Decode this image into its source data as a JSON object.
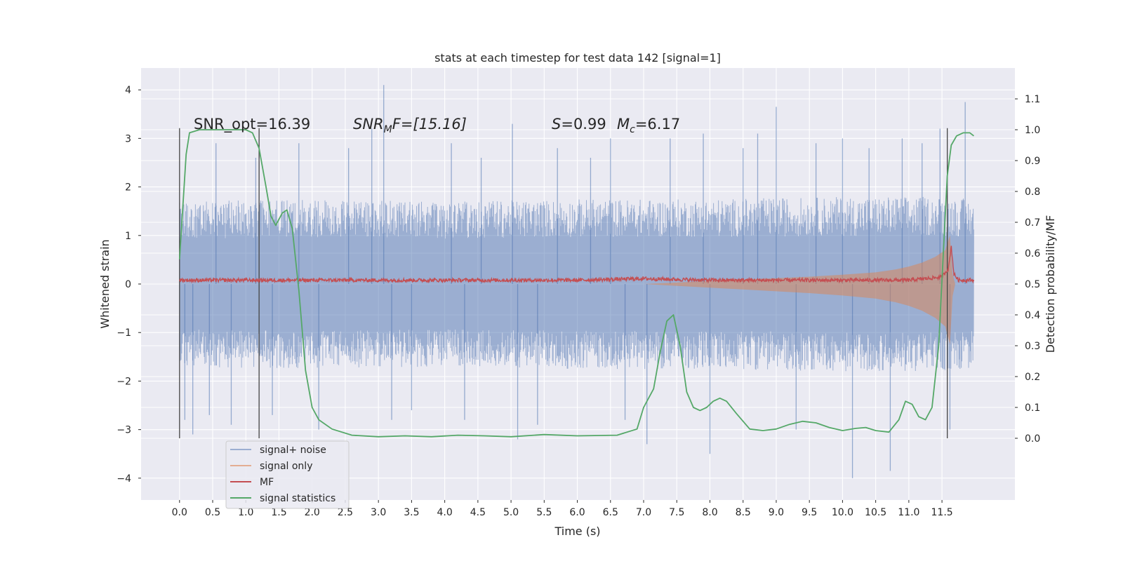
{
  "chart_data": {
    "type": "line",
    "title": "stats at each timestep for test data 142 [signal=1]",
    "xlabel": "Time (s)",
    "ylabel_left": "Whitened strain",
    "ylabel_right": "Detection probability/MF",
    "xlim": [
      -0.58,
      12.6
    ],
    "ylim_left": [
      -4.45,
      4.45
    ],
    "ylim_right": [
      -0.2,
      1.2
    ],
    "x_ticks": [
      "0.0",
      "0.5",
      "1.0",
      "1.5",
      "2.0",
      "2.5",
      "3.0",
      "3.5",
      "4.0",
      "4.5",
      "5.0",
      "5.5",
      "6.0",
      "6.5",
      "7.0",
      "7.5",
      "8.0",
      "8.5",
      "9.0",
      "9.5",
      "10.0",
      "10.5",
      "11.0",
      "11.5"
    ],
    "y_ticks_left": [
      "4",
      "3",
      "2",
      "1",
      "0",
      "−1",
      "−2",
      "−3",
      "−4"
    ],
    "y_ticks_right": [
      "1.1",
      "1.0",
      "0.9",
      "0.8",
      "0.7",
      "0.6",
      "0.5",
      "0.4",
      "0.3",
      "0.2",
      "0.1",
      "0.0"
    ],
    "grid": true,
    "legend_position": "lower-left",
    "vertical_markers": [
      0.0,
      1.2,
      11.58
    ],
    "annotations": {
      "snr_opt": "SNR_opt=16.39",
      "snr_mf_label": "SNR",
      "snr_mf_sub": "M",
      "snr_mf_rest": "F=[15.16]",
      "s_label": "S",
      "s_value": "=0.99",
      "mc_label": "M",
      "mc_sub": "c",
      "mc_value": "=6.17"
    },
    "series": [
      {
        "name": "signal+ noise",
        "color": "#4c72b0",
        "axis": "left",
        "envelope_upper": [
          [
            0.0,
            1.7
          ],
          [
            2.0,
            1.75
          ],
          [
            4.0,
            1.7
          ],
          [
            6.0,
            1.75
          ],
          [
            8.0,
            1.75
          ],
          [
            10.0,
            1.8
          ],
          [
            11.5,
            1.8
          ],
          [
            11.98,
            1.75
          ]
        ],
        "envelope_lower": [
          [
            0.0,
            -1.7
          ],
          [
            2.0,
            -1.75
          ],
          [
            4.0,
            -1.7
          ],
          [
            6.0,
            -1.75
          ],
          [
            8.0,
            -1.75
          ],
          [
            10.0,
            -1.8
          ],
          [
            11.5,
            -1.8
          ],
          [
            11.98,
            -1.75
          ]
        ],
        "spikes": [
          [
            0.08,
            -2.8
          ],
          [
            0.2,
            -3.1
          ],
          [
            0.45,
            -2.7
          ],
          [
            0.55,
            2.9
          ],
          [
            0.78,
            -2.9
          ],
          [
            1.15,
            2.6
          ],
          [
            1.4,
            -2.7
          ],
          [
            1.8,
            2.9
          ],
          [
            2.1,
            -3.0
          ],
          [
            2.55,
            2.8
          ],
          [
            2.9,
            3.2
          ],
          [
            3.08,
            4.1
          ],
          [
            3.2,
            -2.8
          ],
          [
            3.5,
            -2.6
          ],
          [
            4.1,
            2.9
          ],
          [
            4.3,
            -2.8
          ],
          [
            4.55,
            2.6
          ],
          [
            5.02,
            3.3
          ],
          [
            5.1,
            -3.2
          ],
          [
            5.4,
            -2.9
          ],
          [
            5.7,
            2.8
          ],
          [
            6.2,
            2.6
          ],
          [
            6.5,
            3.0
          ],
          [
            6.72,
            -2.8
          ],
          [
            7.05,
            -3.3
          ],
          [
            7.4,
            3.0
          ],
          [
            7.9,
            3.1
          ],
          [
            8.0,
            -3.5
          ],
          [
            8.5,
            2.8
          ],
          [
            8.72,
            3.1
          ],
          [
            9.0,
            3.65
          ],
          [
            9.3,
            -3.0
          ],
          [
            9.6,
            2.9
          ],
          [
            10.0,
            3.0
          ],
          [
            10.15,
            -4.0
          ],
          [
            10.4,
            2.8
          ],
          [
            10.72,
            -3.85
          ],
          [
            10.9,
            3.0
          ],
          [
            11.2,
            2.9
          ],
          [
            11.47,
            3.2
          ],
          [
            11.62,
            -3.0
          ],
          [
            11.85,
            3.75
          ]
        ]
      },
      {
        "name": "signal only",
        "color": "#dd8452",
        "axis": "left",
        "chirp_envelope": [
          [
            7.0,
            0.0
          ],
          [
            7.5,
            0.03
          ],
          [
            8.0,
            0.06
          ],
          [
            8.5,
            0.09
          ],
          [
            9.0,
            0.12
          ],
          [
            9.5,
            0.15
          ],
          [
            10.0,
            0.19
          ],
          [
            10.5,
            0.24
          ],
          [
            10.8,
            0.3
          ],
          [
            11.0,
            0.36
          ],
          [
            11.2,
            0.44
          ],
          [
            11.4,
            0.56
          ],
          [
            11.55,
            0.7
          ],
          [
            11.62,
            1.0
          ],
          [
            11.66,
            0.2
          ],
          [
            11.7,
            0.0
          ]
        ]
      },
      {
        "name": "MF",
        "color": "#c44e52",
        "axis": "right",
        "values": [
          [
            0.0,
            0.51
          ],
          [
            1.0,
            0.51
          ],
          [
            2.0,
            0.51
          ],
          [
            3.0,
            0.51
          ],
          [
            4.0,
            0.51
          ],
          [
            5.0,
            0.51
          ],
          [
            6.0,
            0.51
          ],
          [
            7.0,
            0.515
          ],
          [
            8.0,
            0.51
          ],
          [
            9.0,
            0.51
          ],
          [
            10.0,
            0.51
          ],
          [
            11.0,
            0.51
          ],
          [
            11.5,
            0.52
          ],
          [
            11.6,
            0.55
          ],
          [
            11.64,
            0.62
          ],
          [
            11.68,
            0.53
          ],
          [
            11.75,
            0.51
          ],
          [
            11.98,
            0.51
          ]
        ]
      },
      {
        "name": "signal statistics",
        "color": "#55a868",
        "axis": "right",
        "values": [
          [
            0.0,
            0.58
          ],
          [
            0.05,
            0.75
          ],
          [
            0.1,
            0.92
          ],
          [
            0.15,
            0.99
          ],
          [
            0.3,
            1.0
          ],
          [
            0.6,
            1.0
          ],
          [
            0.9,
            1.0
          ],
          [
            1.0,
            1.0
          ],
          [
            1.1,
            0.99
          ],
          [
            1.2,
            0.94
          ],
          [
            1.3,
            0.82
          ],
          [
            1.38,
            0.72
          ],
          [
            1.45,
            0.69
          ],
          [
            1.55,
            0.73
          ],
          [
            1.62,
            0.74
          ],
          [
            1.7,
            0.68
          ],
          [
            1.8,
            0.48
          ],
          [
            1.9,
            0.22
          ],
          [
            2.0,
            0.1
          ],
          [
            2.1,
            0.06
          ],
          [
            2.3,
            0.03
          ],
          [
            2.6,
            0.01
          ],
          [
            3.0,
            0.005
          ],
          [
            3.4,
            0.008
          ],
          [
            3.8,
            0.005
          ],
          [
            4.2,
            0.01
          ],
          [
            4.6,
            0.008
          ],
          [
            5.0,
            0.005
          ],
          [
            5.5,
            0.012
          ],
          [
            6.0,
            0.008
          ],
          [
            6.6,
            0.01
          ],
          [
            6.9,
            0.03
          ],
          [
            7.0,
            0.1
          ],
          [
            7.15,
            0.16
          ],
          [
            7.25,
            0.28
          ],
          [
            7.35,
            0.38
          ],
          [
            7.45,
            0.4
          ],
          [
            7.55,
            0.3
          ],
          [
            7.65,
            0.15
          ],
          [
            7.75,
            0.1
          ],
          [
            7.85,
            0.09
          ],
          [
            7.95,
            0.1
          ],
          [
            8.05,
            0.12
          ],
          [
            8.15,
            0.13
          ],
          [
            8.25,
            0.12
          ],
          [
            8.4,
            0.08
          ],
          [
            8.6,
            0.03
          ],
          [
            8.8,
            0.025
          ],
          [
            9.0,
            0.03
          ],
          [
            9.2,
            0.045
          ],
          [
            9.4,
            0.055
          ],
          [
            9.6,
            0.05
          ],
          [
            9.8,
            0.035
          ],
          [
            10.0,
            0.025
          ],
          [
            10.2,
            0.032
          ],
          [
            10.35,
            0.035
          ],
          [
            10.5,
            0.025
          ],
          [
            10.7,
            0.02
          ],
          [
            10.85,
            0.06
          ],
          [
            10.95,
            0.12
          ],
          [
            11.05,
            0.11
          ],
          [
            11.15,
            0.07
          ],
          [
            11.25,
            0.06
          ],
          [
            11.35,
            0.1
          ],
          [
            11.45,
            0.3
          ],
          [
            11.52,
            0.6
          ],
          [
            11.58,
            0.85
          ],
          [
            11.64,
            0.95
          ],
          [
            11.72,
            0.98
          ],
          [
            11.82,
            0.99
          ],
          [
            11.92,
            0.99
          ],
          [
            11.98,
            0.98
          ]
        ]
      }
    ]
  }
}
